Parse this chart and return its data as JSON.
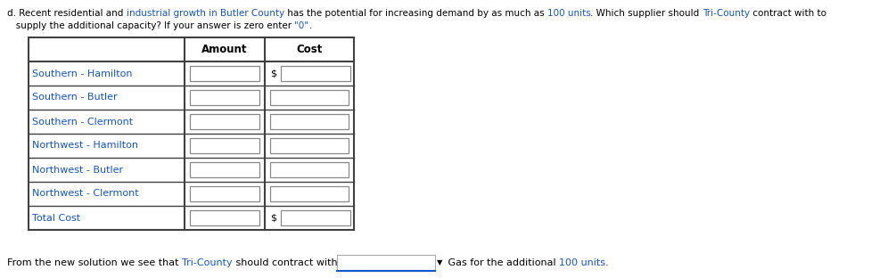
{
  "rows": [
    "Southern - Hamilton",
    "Southern - Butler",
    "Southern - Clermont",
    "Northwest - Hamilton",
    "Northwest - Butler",
    "Northwest - Clermont",
    "Total Cost"
  ],
  "col_headers": [
    "",
    "Amount",
    "Cost"
  ],
  "bg_color": "#ffffff",
  "table_border_color": "#404040",
  "input_box_border": "#888888",
  "text_color_blue": "#1155CC",
  "text_color_black": "#000000",
  "text_color_orange": "#FF8C00",
  "font_size_title": 7.5,
  "font_size_table": 8.0,
  "font_size_header": 8.5,
  "font_size_footer": 8.0
}
